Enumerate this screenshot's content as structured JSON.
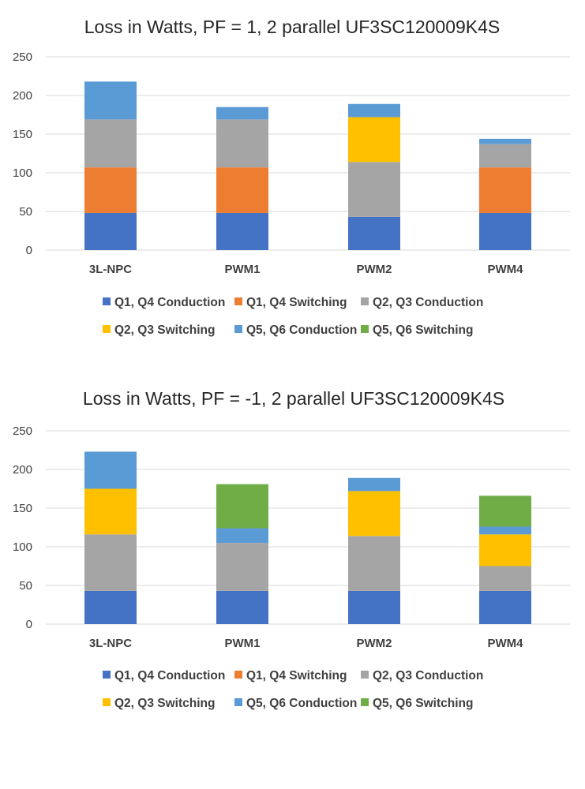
{
  "chart_data": [
    {
      "type": "bar",
      "stacked": true,
      "title": "Loss in Watts, PF = 1, 2 parallel UF3SC120009K4S",
      "categories": [
        "3L-NPC",
        "PWM1",
        "PWM2",
        "PWM4"
      ],
      "ylim": [
        0,
        250
      ],
      "yticks": [
        0,
        50,
        100,
        150,
        200,
        250
      ],
      "grid": true,
      "legend_position": "bottom",
      "series": [
        {
          "name": "Q1, Q4 Conduction",
          "color": "#4472C4",
          "values": [
            48,
            48,
            43,
            48
          ]
        },
        {
          "name": "Q1, Q4 Switching",
          "color": "#ED7D31",
          "values": [
            59,
            59,
            0,
            59
          ]
        },
        {
          "name": "Q2, Q3 Conduction",
          "color": "#A5A5A5",
          "values": [
            62,
            62,
            71,
            30
          ]
        },
        {
          "name": "Q2, Q3 Switching",
          "color": "#FFC000",
          "values": [
            0,
            0,
            58,
            0
          ]
        },
        {
          "name": "Q5, Q6 Conduction",
          "color": "#5B9BD5",
          "values": [
            49,
            16,
            17,
            7
          ]
        },
        {
          "name": "Q5, Q6 Switching",
          "color": "#70AD47",
          "values": [
            0,
            0,
            0,
            0
          ]
        }
      ]
    },
    {
      "type": "bar",
      "stacked": true,
      "title": "Loss in Watts, PF = -1, 2 parallel UF3SC120009K4S",
      "categories": [
        "3L-NPC",
        "PWM1",
        "PWM2",
        "PWM4"
      ],
      "ylim": [
        0,
        250
      ],
      "yticks": [
        0,
        50,
        100,
        150,
        200,
        250
      ],
      "grid": true,
      "legend_position": "bottom",
      "series": [
        {
          "name": "Q1, Q4 Conduction",
          "color": "#4472C4",
          "values": [
            43,
            43,
            43,
            43
          ]
        },
        {
          "name": "Q1, Q4 Switching",
          "color": "#ED7D31",
          "values": [
            0,
            0,
            0,
            0
          ]
        },
        {
          "name": "Q2, Q3 Conduction",
          "color": "#A5A5A5",
          "values": [
            73,
            62,
            71,
            32
          ]
        },
        {
          "name": "Q2, Q3 Switching",
          "color": "#FFC000",
          "values": [
            59,
            0,
            58,
            41
          ]
        },
        {
          "name": "Q5, Q6 Conduction",
          "color": "#5B9BD5",
          "values": [
            48,
            19,
            17,
            10
          ]
        },
        {
          "name": "Q5, Q6 Switching",
          "color": "#70AD47",
          "values": [
            0,
            57,
            0,
            40
          ]
        }
      ]
    }
  ]
}
